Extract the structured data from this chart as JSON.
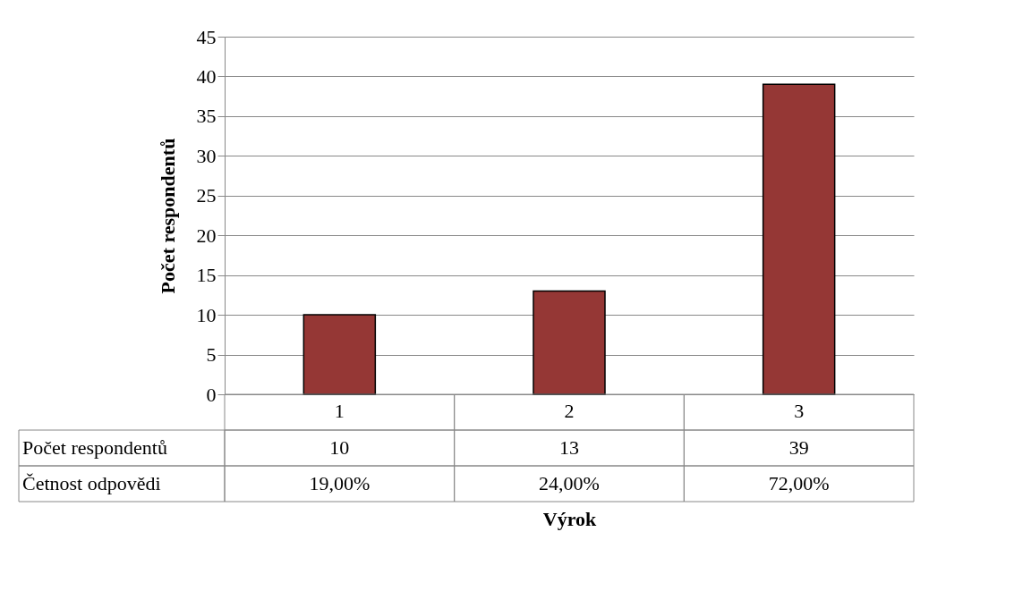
{
  "chart_data": {
    "type": "bar",
    "xlabel": "Výrok",
    "ylabel": "Počet respondentů",
    "categories": [
      "1",
      "2",
      "3"
    ],
    "series": [
      {
        "name": "Počet respondentů",
        "color": "#953735",
        "values": [
          10,
          13,
          39
        ]
      }
    ],
    "ylim": [
      0,
      45
    ],
    "yticks": [
      0,
      5,
      10,
      15,
      20,
      25,
      30,
      35,
      40,
      45
    ],
    "grid": "y",
    "data_labels": true,
    "annotations": [
      "Četnost odpovědi",
      "19,00%",
      "24,00%",
      "72,00%"
    ]
  }
}
